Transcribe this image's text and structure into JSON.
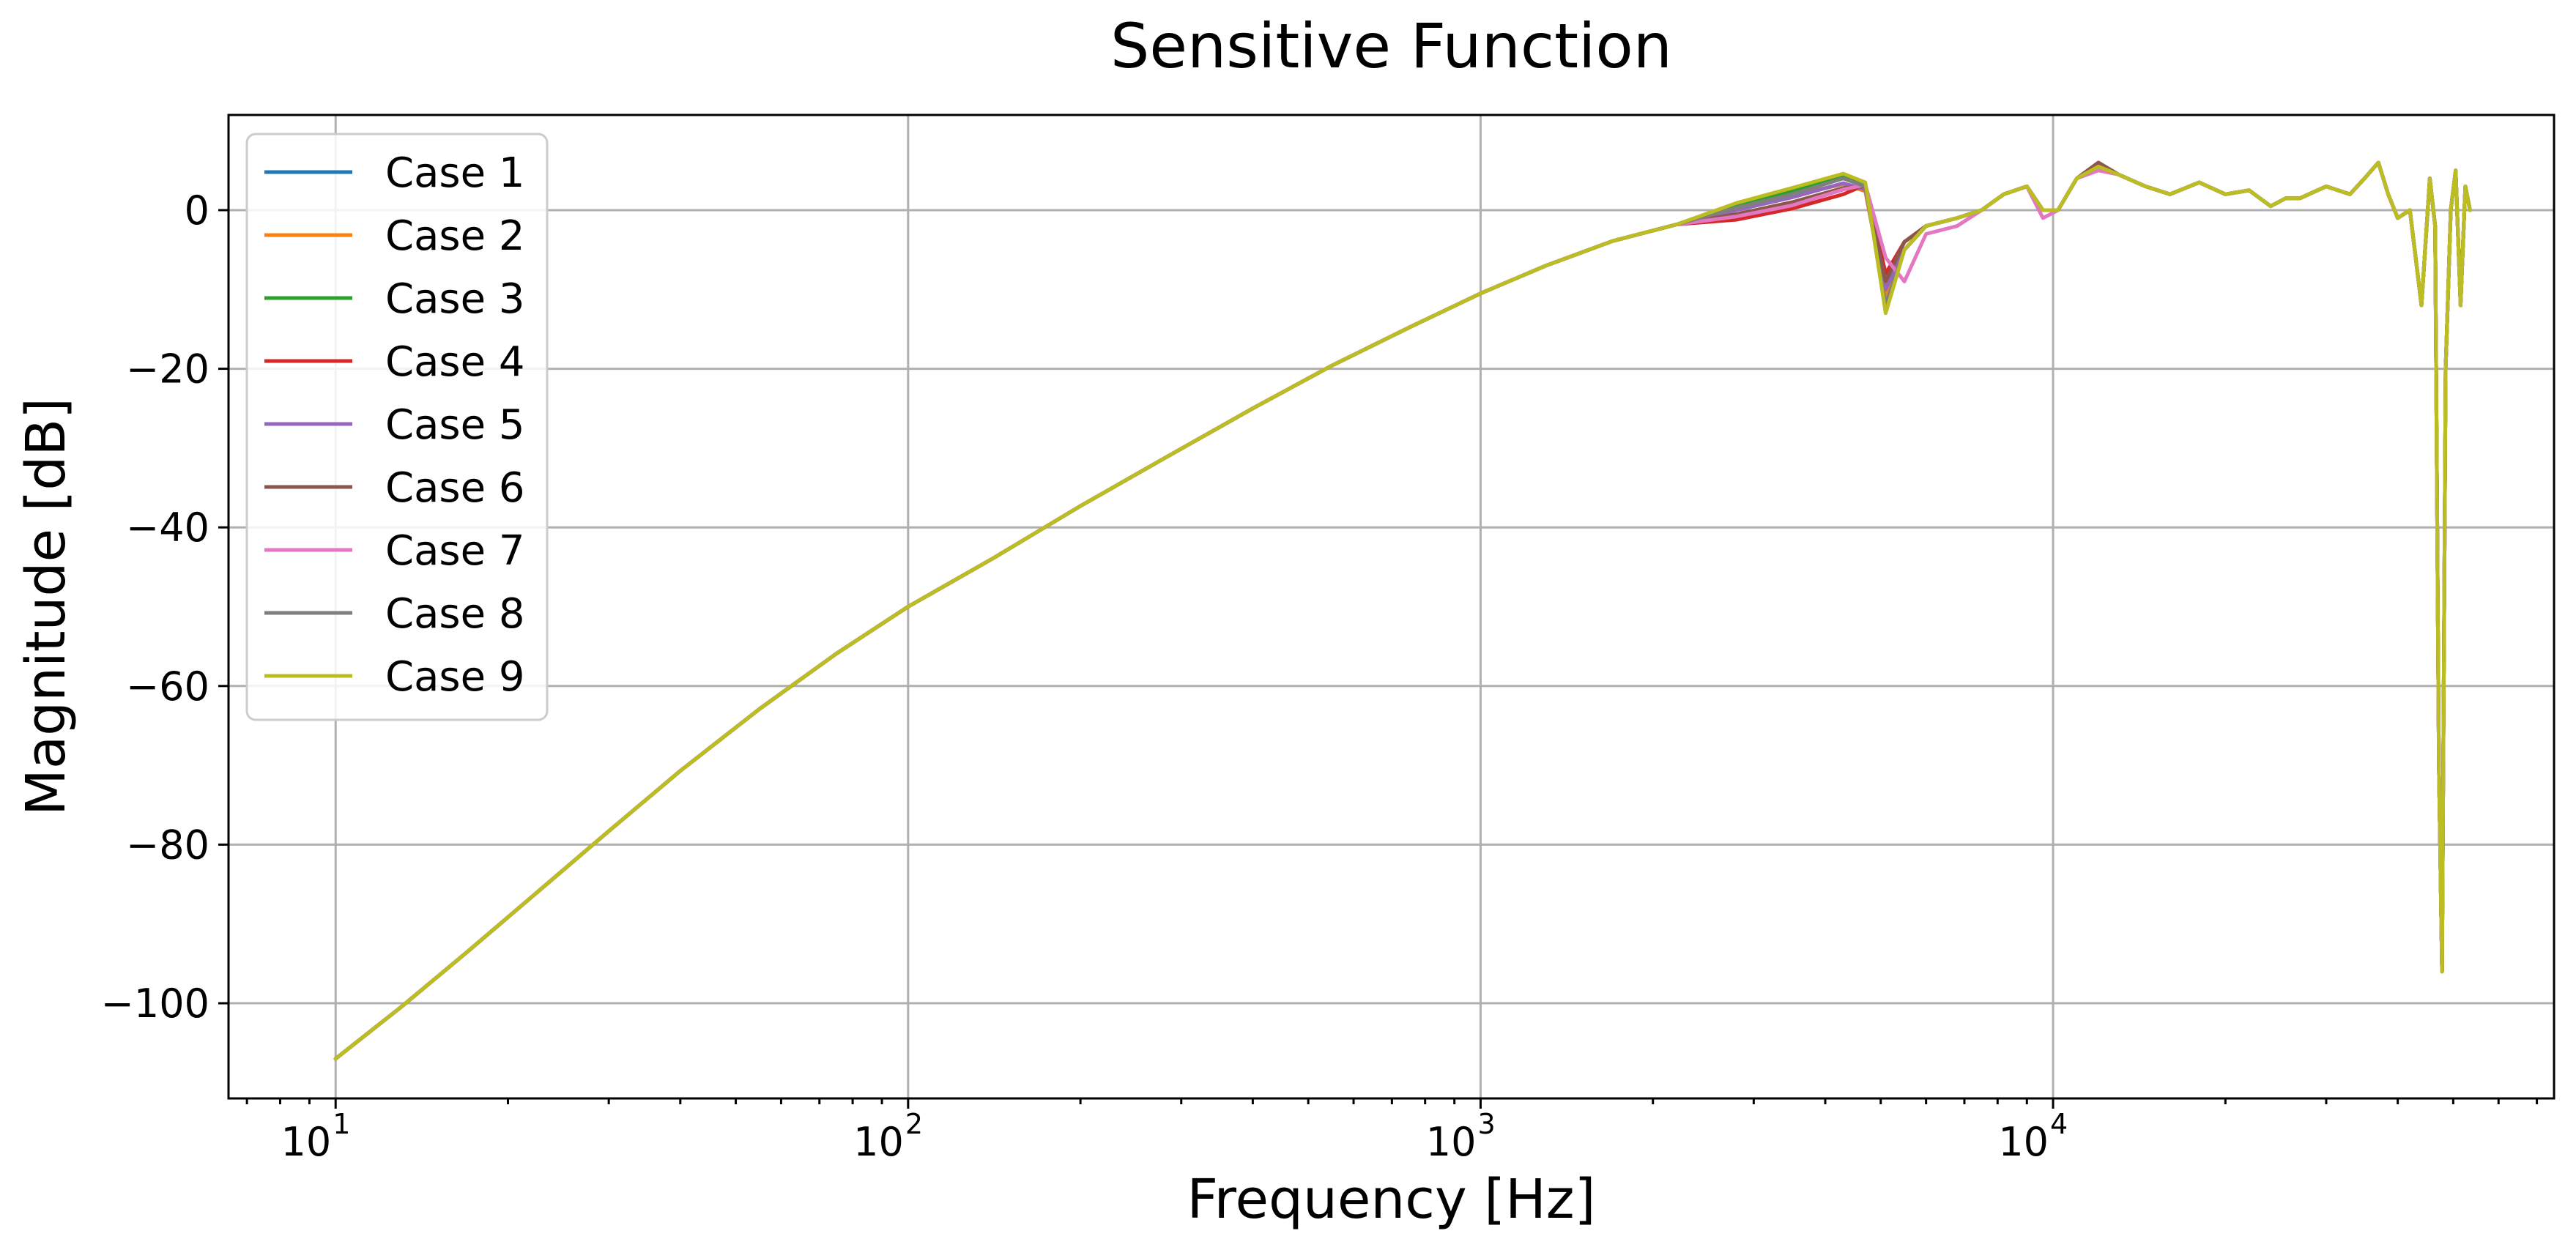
{
  "chart_data": {
    "type": "line",
    "title": "Sensitive Function",
    "xlabel": "Frequency [Hz]",
    "ylabel": "Magnitude [dB]",
    "xscale": "log",
    "xlim": [
      6.5,
      75000
    ],
    "ylim": [
      -112,
      12
    ],
    "grid": true,
    "legend_position": "top-left",
    "x_ticks": [
      {
        "value": 10,
        "base": "10",
        "exp": "1"
      },
      {
        "value": 100,
        "base": "10",
        "exp": "2"
      },
      {
        "value": 1000,
        "base": "10",
        "exp": "3"
      },
      {
        "value": 10000,
        "base": "10",
        "exp": "4"
      }
    ],
    "y_ticks": [
      {
        "value": 0,
        "label": "0"
      },
      {
        "value": -20,
        "label": "−20"
      },
      {
        "value": -40,
        "label": "−40"
      },
      {
        "value": -60,
        "label": "−60"
      },
      {
        "value": -80,
        "label": "−80"
      },
      {
        "value": -100,
        "label": "−100"
      }
    ],
    "common": {
      "x": [
        10,
        13,
        17,
        22,
        30,
        40,
        55,
        75,
        100,
        140,
        200,
        280,
        400,
        550,
        750,
        1000,
        1300,
        1700,
        2200
      ],
      "y": [
        -107,
        -100.5,
        -93.5,
        -86.6,
        -78.3,
        -70.7,
        -62.9,
        -55.9,
        -50,
        -44,
        -37.3,
        -31.3,
        -25,
        -19.6,
        -14.8,
        -10.5,
        -7.0,
        -3.9,
        -1.8
      ]
    },
    "high_freq": {
      "x": [
        13000,
        14500,
        16000,
        18000,
        20000,
        22000,
        24000,
        25500,
        27000,
        30000,
        33000,
        35000,
        37000,
        38500,
        40000,
        42000,
        44000,
        45500,
        46500,
        47200,
        47800,
        48500,
        49500,
        50500,
        51500,
        52500,
        53500
      ],
      "y": [
        4.5,
        3,
        2,
        3.5,
        2,
        2.5,
        0.5,
        1.5,
        1.5,
        3,
        2,
        4,
        6,
        2,
        -1,
        0,
        -12,
        4,
        -2,
        -70,
        -96,
        -20,
        0,
        5,
        -12,
        3,
        0
      ]
    },
    "series": [
      {
        "name": "Case 1",
        "color": "#1f77b4",
        "x": [
          2800,
          3500,
          4300,
          4700,
          5100,
          5500,
          6000,
          6800,
          7500,
          8200,
          9000,
          9600,
          10200,
          11000,
          12000
        ],
        "y": [
          0.2,
          1.8,
          3.3,
          2.4,
          -11,
          -5,
          -2,
          -1,
          0,
          2,
          3,
          0,
          0,
          4,
          5.5
        ]
      },
      {
        "name": "Case 2",
        "color": "#ff7f0e",
        "x": [
          2800,
          3500,
          4300,
          4700,
          5100,
          5500,
          6000,
          6800,
          7500,
          8200,
          9000,
          9600,
          10200,
          11000,
          12000
        ],
        "y": [
          0.2,
          1.8,
          3.3,
          2.4,
          -11,
          -5,
          -2,
          -1,
          0,
          2,
          3,
          0,
          0,
          4,
          5.5
        ]
      },
      {
        "name": "Case 3",
        "color": "#2ca02c",
        "x": [
          2800,
          3500,
          4300,
          4700,
          5100,
          5500,
          6000,
          6800,
          7500,
          8200,
          9000,
          9600,
          10200,
          11000,
          12000
        ],
        "y": [
          0.6,
          2.4,
          4.2,
          3.0,
          -12,
          -5,
          -2,
          -1,
          0,
          2,
          3,
          0,
          0,
          4,
          5.5
        ]
      },
      {
        "name": "Case 4",
        "color": "#d62728",
        "x": [
          2800,
          3500,
          4300,
          4700,
          5100,
          5500,
          6000,
          6800,
          7500,
          8200,
          9000,
          9600,
          10200,
          11000,
          12000
        ],
        "y": [
          -1.2,
          0.2,
          2.0,
          3.2,
          -8,
          -4,
          -2,
          -1,
          0,
          2,
          3,
          0,
          0,
          4,
          5.5
        ]
      },
      {
        "name": "Case 5",
        "color": "#9467bd",
        "x": [
          2800,
          3500,
          4300,
          4700,
          5100,
          5500,
          6000,
          6800,
          7500,
          8200,
          9000,
          9600,
          10200,
          11000,
          12000
        ],
        "y": [
          0.0,
          1.6,
          3.4,
          2.6,
          -10,
          -5,
          -2,
          -1,
          0,
          2,
          3,
          0,
          0,
          4,
          6
        ]
      },
      {
        "name": "Case 6",
        "color": "#8c564b",
        "x": [
          2800,
          3500,
          4300,
          4700,
          5100,
          5500,
          6000,
          6800,
          7500,
          8200,
          9000,
          9600,
          10200,
          11000,
          12000
        ],
        "y": [
          -0.5,
          1.0,
          2.8,
          3.0,
          -9,
          -4,
          -2,
          -1,
          0,
          2,
          3,
          0,
          0,
          4,
          6
        ]
      },
      {
        "name": "Case 7",
        "color": "#e377c2",
        "x": [
          2800,
          3500,
          4300,
          4700,
          5100,
          5500,
          6000,
          6800,
          7500,
          8200,
          9000,
          9600,
          10200,
          11000,
          12000
        ],
        "y": [
          -0.8,
          0.6,
          2.6,
          3.2,
          -6,
          -9,
          -3,
          -2,
          0,
          2,
          3,
          -1,
          0,
          4,
          5
        ]
      },
      {
        "name": "Case 8",
        "color": "#7f7f7f",
        "x": [
          2800,
          3500,
          4300,
          4700,
          5100,
          5500,
          6000,
          6800,
          7500,
          8200,
          9000,
          9600,
          10200,
          11000,
          12000
        ],
        "y": [
          0.3,
          2.0,
          4.0,
          3.0,
          -12,
          -5,
          -2,
          -1,
          0,
          2,
          3,
          0,
          0,
          4,
          5.5
        ]
      },
      {
        "name": "Case 9",
        "color": "#bcbd22",
        "x": [
          2800,
          3500,
          4300,
          4700,
          5100,
          5500,
          6000,
          6800,
          7500,
          8200,
          9000,
          9600,
          10200,
          11000,
          12000
        ],
        "y": [
          0.9,
          2.8,
          4.6,
          3.5,
          -13,
          -5,
          -2,
          -1,
          0,
          2,
          3,
          0,
          0,
          4,
          5.5
        ]
      }
    ]
  }
}
